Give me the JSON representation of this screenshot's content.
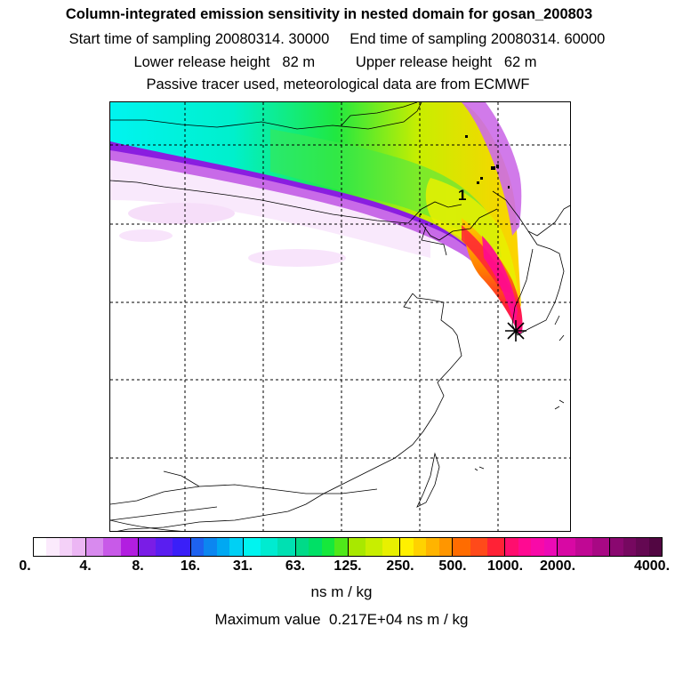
{
  "header": {
    "title": "Column-integrated emission sensitivity in nested domain for gosan_200803",
    "sampling_line": "Start time of sampling 20080314. 30000     End time of sampling 20080314. 60000",
    "release_line": "Lower release height   82 m          Upper release height   62 m",
    "tracer_line": "Passive tracer used, meteorological data are from ECMWF"
  },
  "map": {
    "marker_label": "1",
    "receptor_marker": "asterisk-receptor"
  },
  "chart_data": {
    "type": "heatmap",
    "title": "Column-integrated emission sensitivity in nested domain for gosan_200803",
    "units": "ns m / kg",
    "maximum_value": "0.217E+04",
    "max_text": "Maximum value  0.217E+04 ns m / kg",
    "levels": [
      "0.",
      "4.",
      "8.",
      "16.",
      "31.",
      "63.",
      "125.",
      "250.",
      "500.",
      "1000.",
      "2000.",
      "4000."
    ],
    "colormap": [
      [
        "#ffffff",
        "#fbeafc",
        "#f4d1f8",
        "#ecb6f4"
      ],
      [
        "#d88aee",
        "#c85ae8",
        "#b21ee0"
      ],
      [
        "#7a1de6",
        "#5a1ef0",
        "#3a1ff8"
      ],
      [
        "#1e62f0",
        "#0c86f0",
        "#00a8f2",
        "#00d0f4"
      ],
      [
        "#00f4f0",
        "#00ebd0",
        "#00e0b2"
      ],
      [
        "#00da88",
        "#00e066",
        "#16e83c",
        "#50e81a"
      ],
      [
        "#a8e800",
        "#c8ee00",
        "#e8f000"
      ],
      [
        "#fff000",
        "#ffd200",
        "#ffb400",
        "#ff9600"
      ],
      [
        "#ff6c00",
        "#ff4a1a",
        "#ff2236"
      ],
      [
        "#ff0e6e",
        "#ff0a92",
        "#f80aa8",
        "#ec0ab6"
      ],
      [
        "#d808a4",
        "#c00894",
        "#a80884"
      ],
      [
        "#8a0870",
        "#760860",
        "#640852",
        "#520642"
      ]
    ]
  }
}
